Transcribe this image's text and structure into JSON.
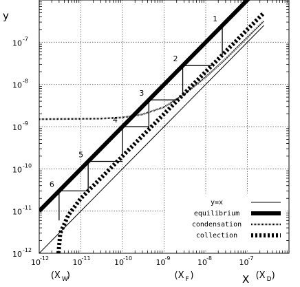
{
  "chart_data": {
    "type": "line",
    "xlabel": "X",
    "ylabel": "y",
    "xscale": "log",
    "yscale": "log",
    "xlim": [
      1e-12,
      1e-06
    ],
    "ylim": [
      1e-12,
      1e-06
    ],
    "grid": true,
    "legend_position": "bottom-right",
    "x_ticks": [
      {
        "base": "10",
        "exp": "-12",
        "value": 1e-12
      },
      {
        "base": "10",
        "exp": "-11",
        "value": 1e-11
      },
      {
        "base": "10",
        "exp": "-10",
        "value": 1e-10
      },
      {
        "base": "10",
        "exp": "-9",
        "value": 1e-09
      },
      {
        "base": "10",
        "exp": "-8",
        "value": 1e-08
      },
      {
        "base": "10",
        "exp": "-7",
        "value": 1e-07
      }
    ],
    "y_ticks": [
      {
        "base": "10",
        "exp": "-12",
        "value": 1e-12
      },
      {
        "base": "10",
        "exp": "-11",
        "value": 1e-11
      },
      {
        "base": "10",
        "exp": "-10",
        "value": 1e-10
      },
      {
        "base": "10",
        "exp": "-9",
        "value": 1e-09
      },
      {
        "base": "10",
        "exp": "-8",
        "value": 1e-08
      },
      {
        "base": "10",
        "exp": "-7",
        "value": 1e-07
      }
    ],
    "series": [
      {
        "name": "y=x",
        "style": "thin-solid",
        "x": [
          1e-12,
          2.5e-07
        ],
        "y": [
          1e-12,
          2.5e-07
        ]
      },
      {
        "name": "equilibrium",
        "style": "thick-solid",
        "x": [
          1e-12,
          2.5e-07
        ],
        "y": [
          1e-11,
          2.5e-06
        ]
      },
      {
        "name": "condensation",
        "style": "dotted",
        "x": [
          1e-12,
          3e-11,
          1e-10,
          3e-10,
          1e-09,
          3e-09,
          1e-08,
          3e-08,
          1e-07,
          2.5e-07
        ],
        "y": [
          1.5e-09,
          1.55e-09,
          1.65e-09,
          1.95e-09,
          2.9e-09,
          5.8e-09,
          1.5e-08,
          4e-08,
          1.3e-07,
          3.2e-07
        ]
      },
      {
        "name": "collection",
        "style": "thick-dashed",
        "x": [
          2.9e-12,
          3.2e-12,
          5e-12,
          1e-11,
          1e-10,
          1e-09,
          1e-08,
          1e-07,
          2.5e-07
        ],
        "y": [
          1e-12,
          3e-12,
          8e-12,
          2e-11,
          2e-10,
          2e-09,
          2e-08,
          2e-07,
          5e-07
        ]
      }
    ],
    "staircase": [
      {
        "label": "1",
        "x": 2.5e-08,
        "y": 2.5e-07,
        "x_next": 2.5e-08
      },
      {
        "label": "2",
        "x": 2.8e-09,
        "y": 2.8e-08,
        "x_next": 1.4e-08
      },
      {
        "label": "3",
        "x": 4.3e-10,
        "y": 4.3e-09,
        "x_next": 2.15e-09
      },
      {
        "label": "4",
        "x": 1e-10,
        "y": 1e-09,
        "x_next": 4.3e-10
      },
      {
        "label": "5",
        "x": 1.5e-11,
        "y": 1.5e-10,
        "x_next": 1e-10
      },
      {
        "label": "6",
        "x": 3e-12,
        "y": 3e-11,
        "x_next": 1.5e-11
      }
    ],
    "annotations": [
      {
        "text": "(X",
        "sub": "W",
        "x": 3e-12
      },
      {
        "text": "(X",
        "sub": "F",
        "x": 2.8e-09
      },
      {
        "text": "(X",
        "sub": "D",
        "x": 2.5e-07
      }
    ]
  }
}
